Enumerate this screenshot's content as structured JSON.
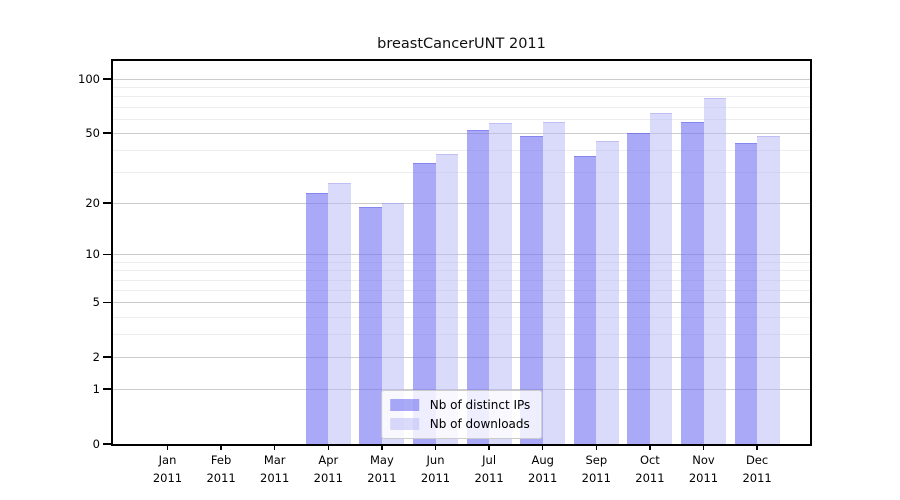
{
  "title": "breastCancerUNT 2011",
  "chart_data": {
    "type": "bar",
    "title": "breastCancerUNT 2011",
    "categories": [
      "Jan 2011",
      "Feb 2011",
      "Mar 2011",
      "Apr 2011",
      "May 2011",
      "Jun 2011",
      "Jul 2011",
      "Aug 2011",
      "Sep 2011",
      "Oct 2011",
      "Nov 2011",
      "Dec 2011"
    ],
    "series": [
      {
        "name": "Nb of distinct IPs",
        "values": [
          0,
          0,
          0,
          23,
          19,
          34,
          52,
          48,
          37,
          50,
          58,
          44
        ]
      },
      {
        "name": "Nb of downloads",
        "values": [
          0,
          0,
          0,
          26,
          20,
          38,
          57,
          58,
          45,
          65,
          78,
          48
        ]
      }
    ],
    "xlabel": "",
    "ylabel": "",
    "yscale": "log1p",
    "ylim": [
      0,
      126
    ],
    "yticks": [
      0,
      1,
      2,
      5,
      10,
      20,
      50,
      100
    ],
    "minor_grid_values": [
      3,
      4,
      6,
      7,
      8,
      9,
      30,
      40,
      60,
      70,
      80,
      90
    ],
    "grid": true,
    "legend_position": "lower center"
  },
  "colors": {
    "bar_distinct_ips": "rgba(112,112,242,0.6)",
    "bar_distinct_ips_edge": "rgba(90,90,230,0.45)",
    "bar_downloads": "rgba(181,181,246,0.5)",
    "bar_downloads_edge": "rgba(150,150,238,0.4)",
    "major_grid": "#cccccc",
    "minor_grid": "#ededed",
    "axis": "#000000",
    "legend_border": "#cccccc"
  }
}
